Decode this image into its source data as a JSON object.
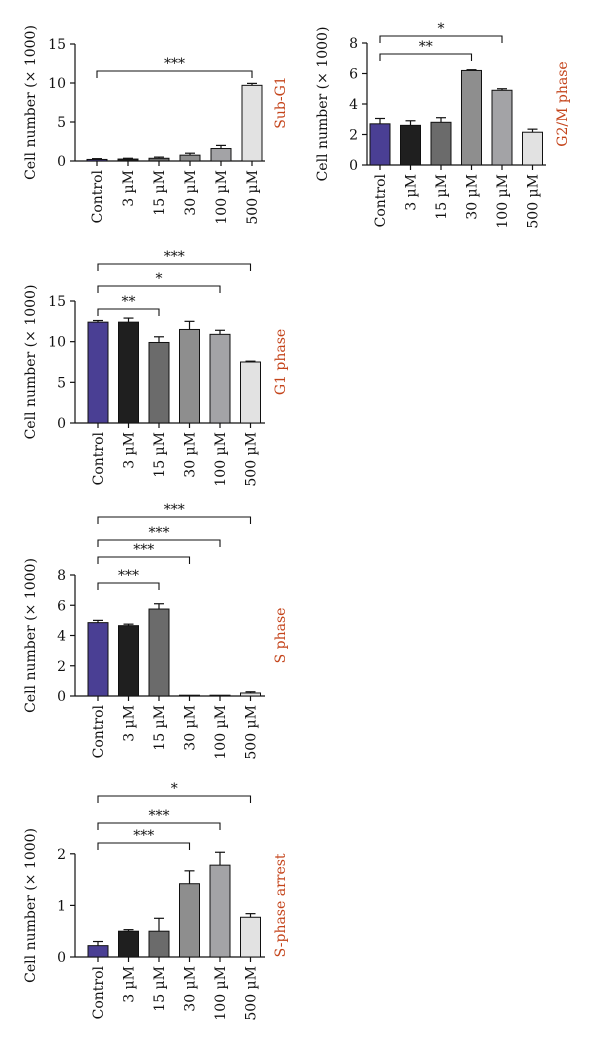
{
  "colors": {
    "bars": [
      "#4a3f94",
      "#1f1f1f",
      "#6b6b6b",
      "#8e8e8e",
      "#a3a3a6",
      "#e2e2e2"
    ],
    "phase_label": "#c4441b",
    "axis": "#111111"
  },
  "chart_data": [
    {
      "type": "bar",
      "ylabel": "Cell number (× 1000)",
      "phase_label": "Sub-G1",
      "categories": [
        "Control",
        "3 µM",
        "15 µM",
        "30 µM",
        "100 µM",
        "500 µM"
      ],
      "values": [
        0.2,
        0.25,
        0.35,
        0.75,
        1.6,
        9.7
      ],
      "errors": [
        0.1,
        0.1,
        0.15,
        0.25,
        0.4,
        0.25
      ],
      "ylim": [
        0,
        15
      ],
      "yticks": [
        0,
        5,
        10,
        15
      ],
      "significance": [
        {
          "from": 0,
          "to": 5,
          "label": "***"
        }
      ]
    },
    {
      "type": "bar",
      "ylabel": "Cell number (× 1000)",
      "phase_label": "G2/M phase",
      "categories": [
        "Control",
        "3 µM",
        "15 µM",
        "30 µM",
        "100 µM",
        "500 µM"
      ],
      "values": [
        2.7,
        2.6,
        2.8,
        6.2,
        4.9,
        2.15
      ],
      "errors": [
        0.35,
        0.3,
        0.3,
        0.05,
        0.1,
        0.2
      ],
      "ylim": [
        0,
        8
      ],
      "yticks": [
        0,
        2,
        4,
        6,
        8
      ],
      "significance": [
        {
          "from": 0,
          "to": 3,
          "label": "**"
        },
        {
          "from": 0,
          "to": 4,
          "label": "*"
        }
      ]
    },
    {
      "type": "bar",
      "ylabel": "Cell number (× 1000)",
      "phase_label": "G1 phase",
      "categories": [
        "Control",
        "3 µM",
        "15 µM",
        "30 µM",
        "100 µM",
        "500 µM"
      ],
      "values": [
        12.4,
        12.4,
        9.9,
        11.5,
        10.9,
        7.5
      ],
      "errors": [
        0.2,
        0.5,
        0.7,
        1.0,
        0.5,
        0.1
      ],
      "ylim": [
        0,
        15
      ],
      "yticks": [
        0,
        5,
        10,
        15
      ],
      "significance": [
        {
          "from": 0,
          "to": 2,
          "label": "**"
        },
        {
          "from": 0,
          "to": 4,
          "label": "*"
        },
        {
          "from": 0,
          "to": 5,
          "label": "***"
        }
      ]
    },
    {
      "type": "bar",
      "ylabel": "Cell number (× 1000)",
      "phase_label": "S phase",
      "categories": [
        "Control",
        "3 µM",
        "15 µM",
        "30 µM",
        "100 µM",
        "500 µM"
      ],
      "values": [
        4.85,
        4.65,
        5.75,
        0.02,
        0.02,
        0.2
      ],
      "errors": [
        0.15,
        0.1,
        0.35,
        0.0,
        0.0,
        0.08
      ],
      "ylim": [
        0,
        8
      ],
      "yticks": [
        0,
        2,
        4,
        6,
        8
      ],
      "significance": [
        {
          "from": 0,
          "to": 2,
          "label": "***"
        },
        {
          "from": 0,
          "to": 3,
          "label": "***"
        },
        {
          "from": 0,
          "to": 4,
          "label": "***"
        },
        {
          "from": 0,
          "to": 5,
          "label": "***"
        }
      ]
    },
    {
      "type": "bar",
      "ylabel": "Cell number (× 1000)",
      "phase_label": "S-phase arrest",
      "categories": [
        "Control",
        "3 µM",
        "15 µM",
        "30 µM",
        "100 µM",
        "500 µM"
      ],
      "values": [
        0.22,
        0.5,
        0.5,
        1.42,
        1.78,
        0.77
      ],
      "errors": [
        0.08,
        0.03,
        0.25,
        0.25,
        0.25,
        0.07
      ],
      "ylim": [
        0,
        2.5
      ],
      "yticks": [
        0,
        1,
        2
      ],
      "significance": [
        {
          "from": 0,
          "to": 3,
          "label": "***"
        },
        {
          "from": 0,
          "to": 4,
          "label": "***"
        },
        {
          "from": 0,
          "to": 5,
          "label": "*"
        }
      ]
    }
  ]
}
